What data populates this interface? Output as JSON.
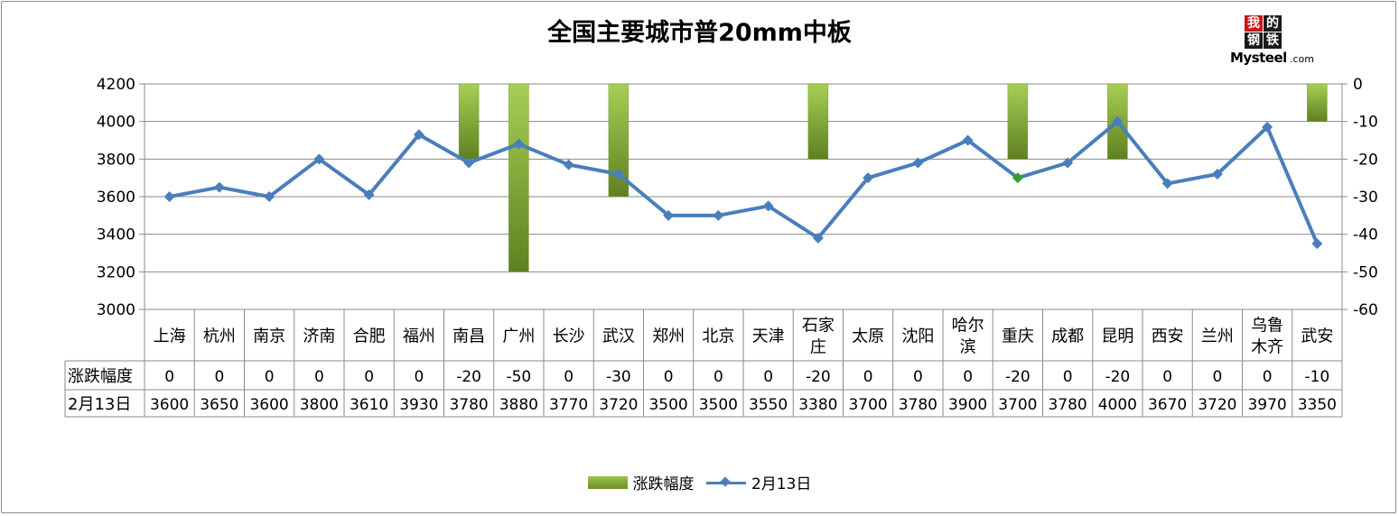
{
  "title": "全国主要城市普20mm中板",
  "logo": {
    "c1": "我",
    "c2": "的",
    "c3": "钢",
    "c4": "铁",
    "brand": "Mysteel",
    "domain": ".com"
  },
  "chart_data": {
    "type": "bar+line",
    "title": "全国主要城市普20mm中板",
    "categories": [
      [
        "上海"
      ],
      [
        "杭州"
      ],
      [
        "南京"
      ],
      [
        "济南"
      ],
      [
        "合肥"
      ],
      [
        "福州"
      ],
      [
        "南昌"
      ],
      [
        "广州"
      ],
      [
        "长沙"
      ],
      [
        "武汉"
      ],
      [
        "郑州"
      ],
      [
        "北京"
      ],
      [
        "天津"
      ],
      [
        "石家",
        "庄"
      ],
      [
        "太原"
      ],
      [
        "沈阳"
      ],
      [
        "哈尔",
        "滨"
      ],
      [
        "重庆"
      ],
      [
        "成都"
      ],
      [
        "昆明"
      ],
      [
        "西安"
      ],
      [
        "兰州"
      ],
      [
        "乌鲁",
        "木齐"
      ],
      [
        "武安"
      ]
    ],
    "left_axis": {
      "min": 3000,
      "max": 4200,
      "step": 200,
      "ticks": [
        "3000",
        "3200",
        "3400",
        "3600",
        "3800",
        "4000",
        "4200"
      ]
    },
    "right_axis": {
      "min": -60,
      "max": 0,
      "step": 10,
      "ticks": [
        "-60",
        "-50",
        "-40",
        "-30",
        "-20",
        "-10",
        "0"
      ]
    },
    "series": [
      {
        "name": "涨跌幅度",
        "type": "bar",
        "axis": "right",
        "color": "#8db83e",
        "values": [
          0,
          0,
          0,
          0,
          0,
          0,
          -20,
          -50,
          0,
          -30,
          0,
          0,
          0,
          -20,
          0,
          0,
          0,
          -20,
          0,
          -20,
          0,
          0,
          0,
          -10
        ],
        "labels": [
          "0",
          "0",
          "0",
          "0",
          "0",
          "0",
          "-20",
          "-50",
          "0",
          "-30",
          "0",
          "0",
          "0",
          "-20",
          "0",
          "0",
          "0",
          "-20",
          "0",
          "-20",
          "0",
          "0",
          "0",
          "-10"
        ]
      },
      {
        "name": "2月13日",
        "type": "line",
        "axis": "left",
        "color": "#4a7ebb",
        "values": [
          3600,
          3650,
          3600,
          3800,
          3610,
          3930,
          3780,
          3880,
          3770,
          3720,
          3500,
          3500,
          3550,
          3380,
          3700,
          3780,
          3900,
          3700,
          3780,
          4000,
          3670,
          3720,
          3970,
          3350
        ],
        "labels": [
          "3600",
          "3650",
          "3600",
          "3800",
          "3610",
          "3930",
          "3780",
          "3880",
          "3770",
          "3720",
          "3500",
          "3500",
          "3550",
          "3380",
          "3700",
          "3780",
          "3900",
          "3700",
          "3780",
          "4000",
          "3670",
          "3720",
          "3970",
          "3350"
        ],
        "highlight_index": 17,
        "highlight_color": "#2ca02c"
      }
    ],
    "grid": true,
    "legend_position": "bottom"
  }
}
